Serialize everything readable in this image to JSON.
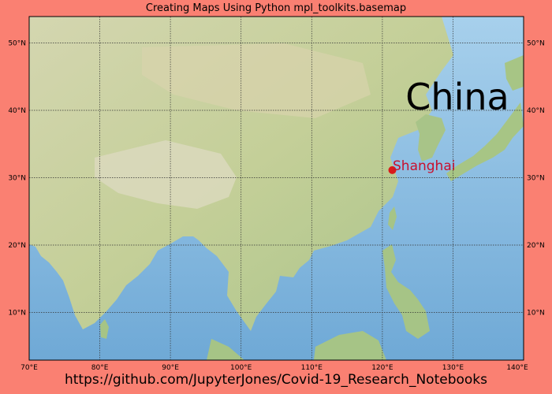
{
  "title": "Creating Maps Using Python mpl_toolkits.basemap",
  "footer": "https://github.com/JupyterJones/Covid-19_Research_Notebooks",
  "colors": {
    "background": "#fa8072",
    "ocean": "#8cc0e0",
    "land": "#c9d4a2",
    "marker": "#d81b1b",
    "marker_label": "#c8102e",
    "gridline": "#333333"
  },
  "map": {
    "projection": "cylindrical",
    "basemap": "shaded relief / topographic",
    "lon_range": [
      70,
      140
    ],
    "lat_range": [
      3,
      54
    ],
    "meridians": [
      70,
      80,
      90,
      100,
      110,
      120,
      130,
      140
    ],
    "parallels": [
      10,
      20,
      30,
      40,
      50
    ],
    "meridian_labels": [
      "70°E",
      "80°E",
      "90°E",
      "100°E",
      "110°E",
      "120°E",
      "130°E",
      "140°E"
    ],
    "parallel_labels": [
      "10°N",
      "20°N",
      "30°N",
      "40°N",
      "50°N"
    ],
    "country_label": {
      "text": "China",
      "lon": 125.5,
      "lat": 38.5
    },
    "markers": [
      {
        "name": "Shanghai",
        "lon": 121.47,
        "lat": 31.23
      }
    ]
  }
}
